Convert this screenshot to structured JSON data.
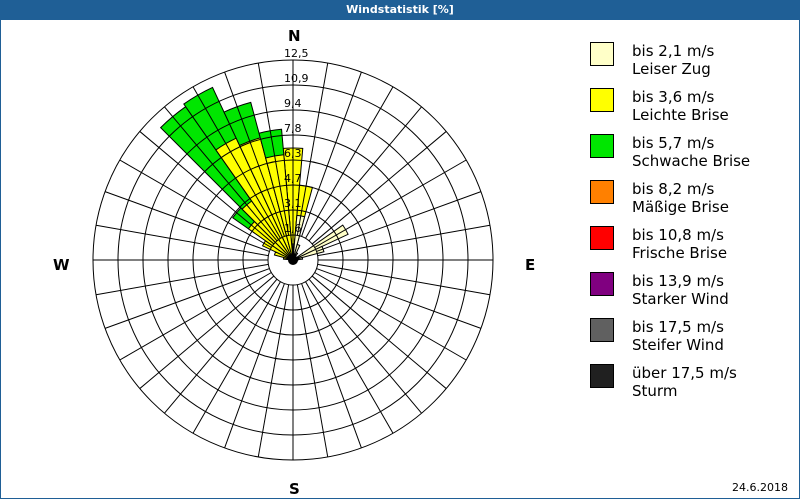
{
  "title": "Windstatistik [%]",
  "compass": {
    "n": "N",
    "e": "E",
    "s": "S",
    "w": "W"
  },
  "date": "24.6.2018",
  "legend": [
    {
      "line1": "bis 2,1 m/s",
      "line2": "Leiser Zug",
      "color": "#ffffc8"
    },
    {
      "line1": "bis 3,6 m/s",
      "line2": "Leichte Brise",
      "color": "#ffff00"
    },
    {
      "line1": "bis 5,7 m/s",
      "line2": "Schwache Brise",
      "color": "#00e600"
    },
    {
      "line1": "bis 8,2 m/s",
      "line2": "Mäßige Brise",
      "color": "#ff8000"
    },
    {
      "line1": "bis 10,8 m/s",
      "line2": "Frische Brise",
      "color": "#ff0000"
    },
    {
      "line1": "bis 13,9 m/s",
      "line2": "Starker Wind",
      "color": "#800080"
    },
    {
      "line1": "bis 17,5 m/s",
      "line2": "Steifer Wind",
      "color": "#606060"
    },
    {
      "line1": "über 17,5 m/s",
      "line2": "Sturm",
      "color": "#202020"
    }
  ],
  "chart_data": {
    "type": "polar-bar (wind rose)",
    "title": "Windstatistik [%]",
    "ring_labels": [
      "1,6",
      "3,1",
      "4,7",
      "6,3",
      "7,8",
      "9,4",
      "10,9",
      "12,5"
    ],
    "rmax": 12.5,
    "sector_width_deg": 10,
    "classes": [
      "Leiser Zug",
      "Leichte Brise",
      "Schwache Brise"
    ],
    "sectors": [
      {
        "dir": 0,
        "cumulative": [
          1.0,
          7.0,
          7.0
        ]
      },
      {
        "dir": 10,
        "cumulative": [
          2.8,
          4.7,
          4.7
        ]
      },
      {
        "dir": 20,
        "cumulative": [
          1.0,
          1.0,
          1.0
        ]
      },
      {
        "dir": 30,
        "cumulative": [
          0.5,
          0.5,
          0.5
        ]
      },
      {
        "dir": 60,
        "cumulative": [
          3.8,
          3.8,
          3.8
        ]
      },
      {
        "dir": 70,
        "cumulative": [
          2.0,
          2.0,
          2.0
        ]
      },
      {
        "dir": 80,
        "cumulative": [
          0.6,
          0.6,
          0.6
        ]
      },
      {
        "dir": 90,
        "cumulative": [
          0.3,
          0.3,
          0.3
        ]
      },
      {
        "dir": 280,
        "cumulative": [
          0.2,
          0.6,
          0.6
        ]
      },
      {
        "dir": 290,
        "cumulative": [
          0.3,
          1.2,
          1.2
        ]
      },
      {
        "dir": 300,
        "cumulative": [
          0.3,
          2.1,
          2.1
        ]
      },
      {
        "dir": 310,
        "cumulative": [
          0.3,
          3.4,
          4.6
        ]
      },
      {
        "dir": 320,
        "cumulative": [
          0.3,
          4.5,
          11.7
        ]
      },
      {
        "dir": 330,
        "cumulative": [
          0.3,
          8.4,
          11.9
        ]
      },
      {
        "dir": 340,
        "cumulative": [
          0.3,
          7.9,
          10.2
        ]
      },
      {
        "dir": 350,
        "cumulative": [
          0.3,
          6.6,
          8.2
        ]
      }
    ]
  }
}
